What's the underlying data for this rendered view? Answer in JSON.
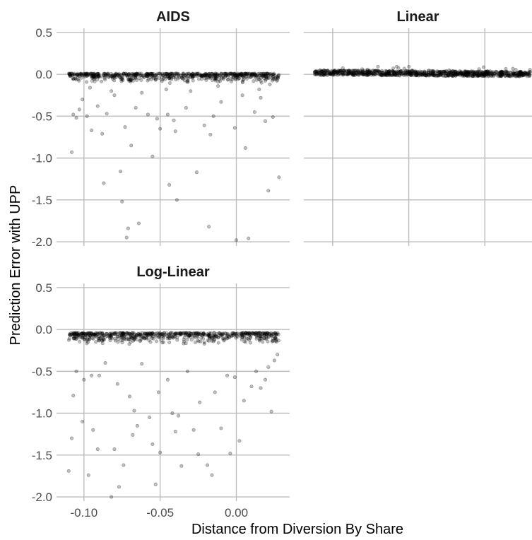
{
  "chart_data": {
    "type": "scatter",
    "xlabel": "Distance from Diversion By Share",
    "ylabel": "Prediction Error with UPP",
    "xlim": [
      -0.118,
      0.035
    ],
    "ylim": [
      -2.05,
      0.55
    ],
    "x_ticks": [
      -0.1,
      -0.05,
      0.0
    ],
    "x_tick_labels": [
      "-0.10",
      "-0.05",
      "0.00"
    ],
    "y_ticks": [
      0.5,
      0.0,
      -0.5,
      -1.0,
      -1.5,
      -2.0
    ],
    "y_tick_labels": [
      "0.5",
      "0.0",
      "-0.5",
      "-1.0",
      "-1.5",
      "-2.0"
    ],
    "grid": true,
    "point_color": "#000000",
    "point_opacity": 0.25,
    "panels": [
      {
        "title": "AIDS",
        "show_x_tick_labels": false,
        "show_y_tick_labels": true,
        "points": [
          [
            -0.108,
            -0.93
          ],
          [
            -0.107,
            -0.48
          ],
          [
            -0.105,
            -0.52
          ],
          [
            -0.103,
            -0.42
          ],
          [
            -0.101,
            -0.3
          ],
          [
            -0.098,
            -0.5
          ],
          [
            -0.095,
            -0.67
          ],
          [
            -0.091,
            -0.38
          ],
          [
            -0.088,
            -0.71
          ],
          [
            -0.087,
            -1.3
          ],
          [
            -0.085,
            -0.47
          ],
          [
            -0.08,
            -0.25
          ],
          [
            -0.076,
            -1.16
          ],
          [
            -0.075,
            -1.52
          ],
          [
            -0.073,
            -0.63
          ],
          [
            -0.072,
            -1.95
          ],
          [
            -0.071,
            -1.84
          ],
          [
            -0.069,
            -0.85
          ],
          [
            -0.066,
            -0.4
          ],
          [
            -0.064,
            -1.78
          ],
          [
            -0.058,
            -0.48
          ],
          [
            -0.055,
            -0.98
          ],
          [
            -0.052,
            -0.53
          ],
          [
            -0.05,
            -0.65
          ],
          [
            -0.045,
            -0.48
          ],
          [
            -0.044,
            -1.32
          ],
          [
            -0.041,
            -0.55
          ],
          [
            -0.04,
            -0.68
          ],
          [
            -0.039,
            -1.5
          ],
          [
            -0.033,
            -0.4
          ],
          [
            -0.026,
            -1.17
          ],
          [
            -0.021,
            -0.61
          ],
          [
            -0.018,
            -1.82
          ],
          [
            -0.017,
            -0.72
          ],
          [
            -0.015,
            -0.5
          ],
          [
            -0.01,
            -0.33
          ],
          [
            -0.001,
            -0.64
          ],
          [
            0.0,
            -1.98
          ],
          [
            0.004,
            -0.25
          ],
          [
            0.006,
            -0.88
          ],
          [
            0.008,
            -1.96
          ],
          [
            0.012,
            -0.45
          ],
          [
            0.016,
            -0.28
          ],
          [
            0.019,
            -0.56
          ],
          [
            0.021,
            -1.39
          ],
          [
            0.024,
            -0.51
          ],
          [
            0.028,
            -1.23
          ],
          [
            -0.096,
            -0.16
          ],
          [
            -0.062,
            -0.22
          ],
          [
            -0.03,
            -0.2
          ],
          [
            -0.012,
            -0.14
          ],
          [
            0.015,
            -0.18
          ],
          [
            -0.082,
            -0.2
          ],
          [
            -0.046,
            -0.18
          ],
          [
            0.022,
            -0.12
          ]
        ]
      },
      {
        "title": "Linear",
        "show_x_tick_labels": false,
        "show_y_tick_labels": false,
        "points": []
      },
      {
        "title": "Log-Linear",
        "show_x_tick_labels": true,
        "show_y_tick_labels": true,
        "points": [
          [
            -0.11,
            -1.69
          ],
          [
            -0.108,
            -1.3
          ],
          [
            -0.107,
            -0.79
          ],
          [
            -0.105,
            -0.5
          ],
          [
            -0.101,
            -1.1
          ],
          [
            -0.1,
            -0.6
          ],
          [
            -0.097,
            -1.74
          ],
          [
            -0.095,
            -0.55
          ],
          [
            -0.094,
            -1.2
          ],
          [
            -0.091,
            -1.43
          ],
          [
            -0.09,
            -0.55
          ],
          [
            -0.086,
            -0.4
          ],
          [
            -0.082,
            -2.0
          ],
          [
            -0.08,
            -1.43
          ],
          [
            -0.078,
            -0.65
          ],
          [
            -0.077,
            -1.88
          ],
          [
            -0.074,
            -1.62
          ],
          [
            -0.07,
            -0.8
          ],
          [
            -0.068,
            -1.26
          ],
          [
            -0.067,
            -0.97
          ],
          [
            -0.065,
            -1.15
          ],
          [
            -0.062,
            -0.41
          ],
          [
            -0.057,
            -1.05
          ],
          [
            -0.055,
            -1.37
          ],
          [
            -0.053,
            -1.85
          ],
          [
            -0.051,
            -0.75
          ],
          [
            -0.05,
            -1.47
          ],
          [
            -0.045,
            -0.6
          ],
          [
            -0.042,
            -1.0
          ],
          [
            -0.04,
            -1.22
          ],
          [
            -0.038,
            -1.03
          ],
          [
            -0.036,
            -1.63
          ],
          [
            -0.032,
            -0.5
          ],
          [
            -0.028,
            -1.2
          ],
          [
            -0.025,
            -1.49
          ],
          [
            -0.024,
            -0.87
          ],
          [
            -0.019,
            -1.62
          ],
          [
            -0.016,
            -1.74
          ],
          [
            -0.014,
            -0.75
          ],
          [
            -0.01,
            -1.18
          ],
          [
            -0.006,
            -0.55
          ],
          [
            -0.004,
            -1.48
          ],
          [
            -0.001,
            -0.57
          ],
          [
            0.002,
            -1.33
          ],
          [
            0.005,
            -0.85
          ],
          [
            0.01,
            -0.68
          ],
          [
            0.013,
            -0.5
          ],
          [
            0.016,
            -0.7
          ],
          [
            0.019,
            -0.6
          ],
          [
            0.021,
            -0.45
          ],
          [
            0.023,
            -0.98
          ],
          [
            0.025,
            -0.37
          ],
          [
            0.027,
            -0.3
          ]
        ]
      }
    ]
  }
}
